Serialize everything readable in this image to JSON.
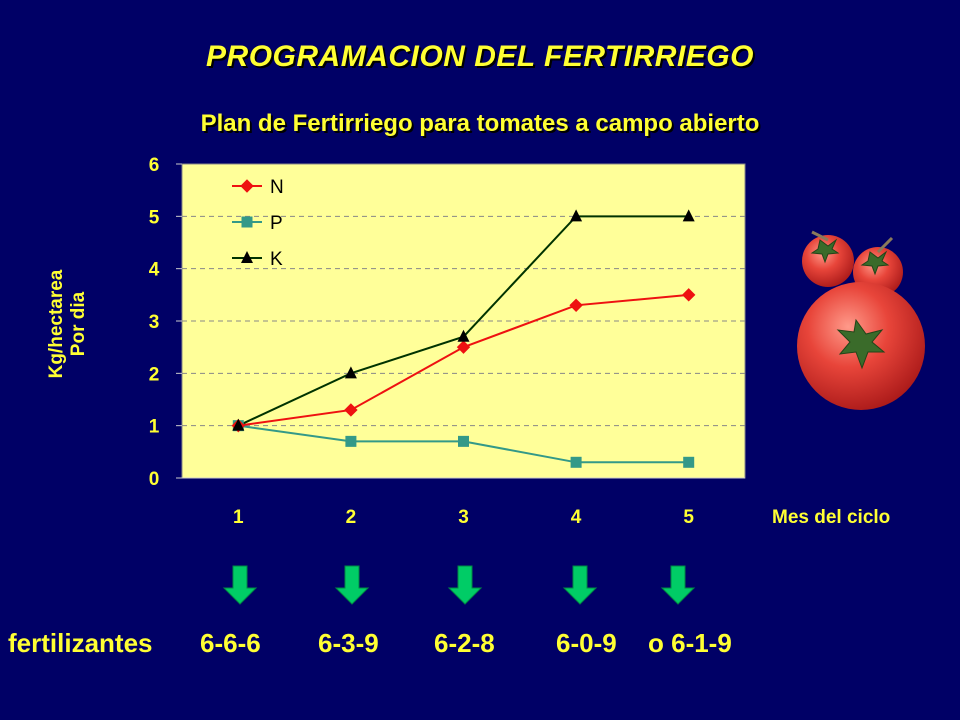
{
  "header": {
    "title": "PROGRAMACION DEL FERTIRRIEGO",
    "subtitle": "Plan de Fertirriego para tomates a campo abierto"
  },
  "chart_data": {
    "type": "line",
    "ylabel": [
      "Kg/hectarea",
      "Por dia"
    ],
    "xlabel": "Mes del ciclo",
    "x": [
      1,
      2,
      3,
      4,
      5
    ],
    "ylim": [
      0,
      6
    ],
    "yticks": [
      0,
      1,
      2,
      3,
      4,
      5,
      6
    ],
    "grid": true,
    "legend": "top-left",
    "series": [
      {
        "name": "N",
        "values": [
          1,
          1.3,
          2.5,
          3.3,
          3.5
        ],
        "color": "#ee1111",
        "marker": "diamond"
      },
      {
        "name": "P",
        "values": [
          1,
          0.7,
          0.7,
          0.3,
          0.3
        ],
        "color": "#339988",
        "marker": "square"
      },
      {
        "name": "K",
        "values": [
          1,
          2,
          2.7,
          5,
          5
        ],
        "color": "#003300",
        "marker": "triangle"
      }
    ]
  },
  "fertilizers": {
    "label": "fertilizantes",
    "items": [
      "6-6-6",
      "6-3-9",
      "6-2-8",
      "6-0-9",
      "o 6-1-9"
    ]
  },
  "colors": {
    "background": "#000066",
    "title": "#ffff33",
    "plot_area": "#ffff99",
    "arrow": "#00cc66"
  },
  "decor": {
    "image": "tomato-icon"
  }
}
